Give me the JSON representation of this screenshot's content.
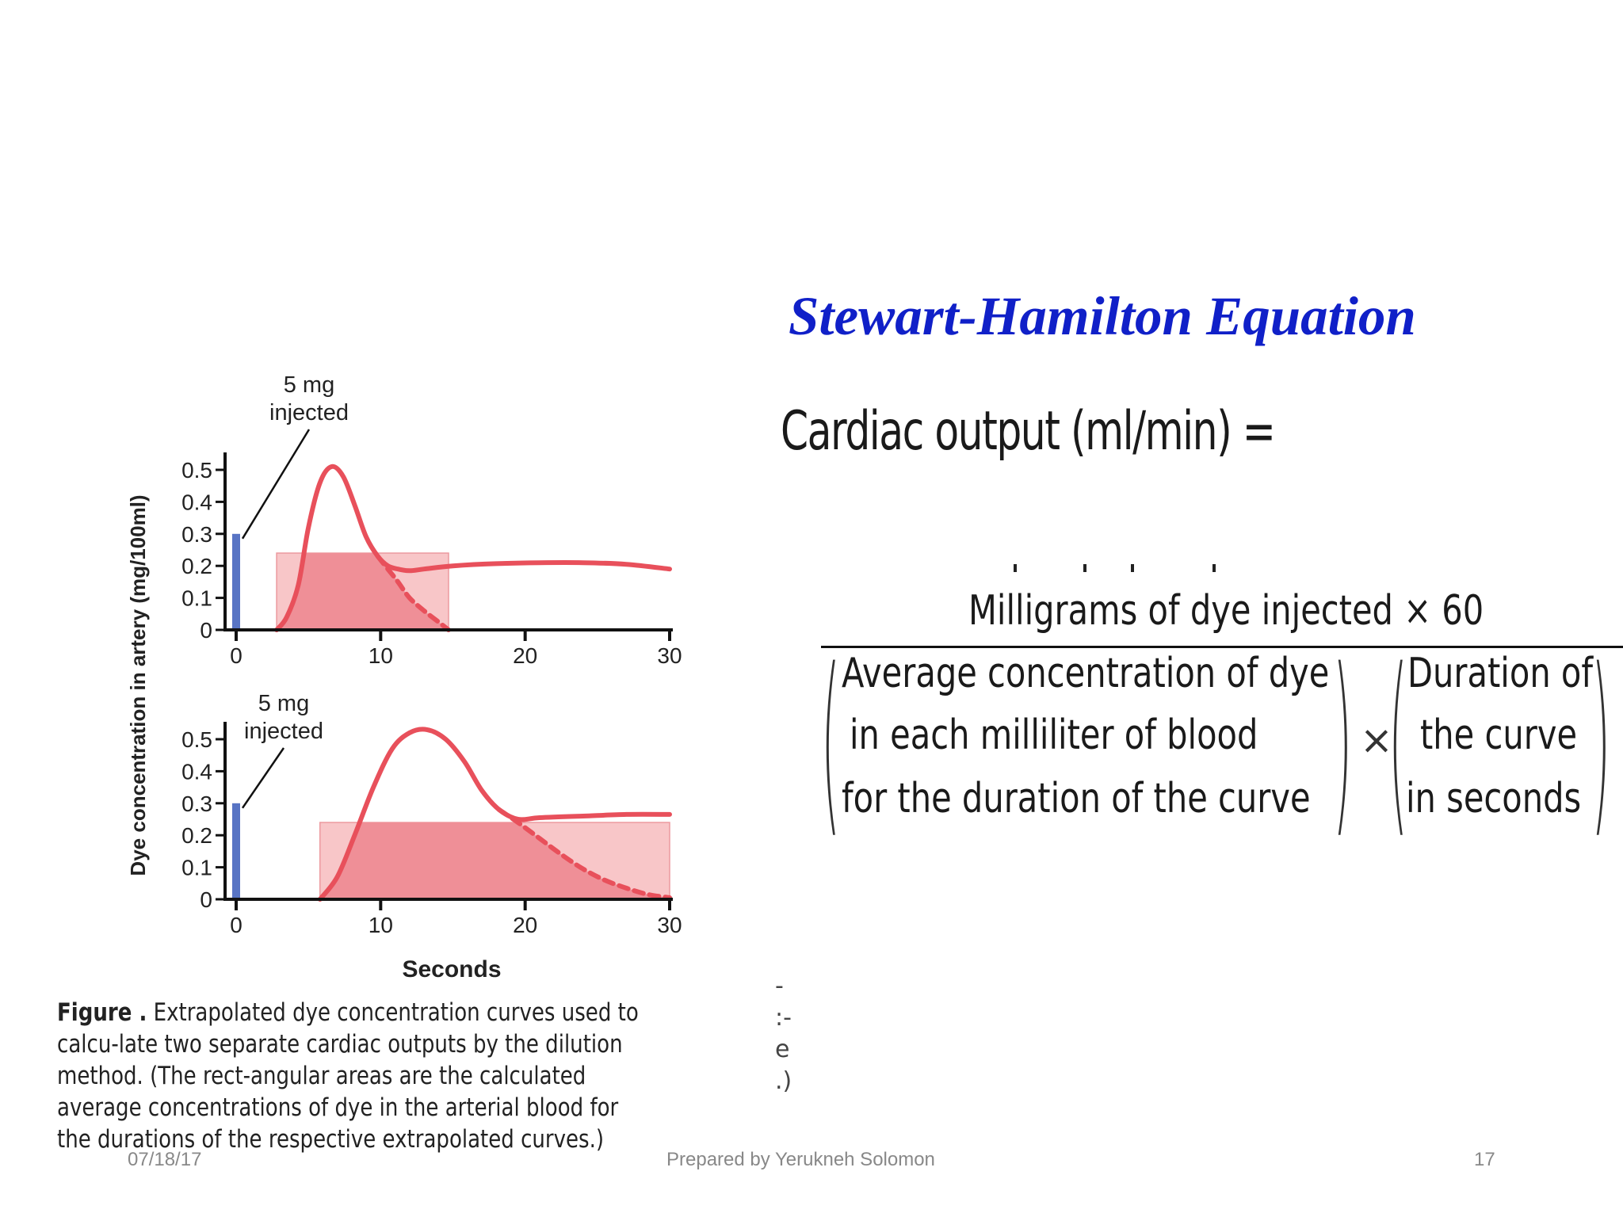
{
  "slide": {
    "title": "Stewart-Hamilton Equation",
    "footer_date": "07/18/17",
    "footer_author": "Prepared by Yerukneh Solomon",
    "footer_page": "17"
  },
  "equation": {
    "lhs": "Cardiac output (ml/min) =",
    "numerator": "Milligrams of dye injected × 60",
    "denominator_left": [
      "Average concentration of dye",
      "in each milliliter of blood",
      "for the duration of the curve"
    ],
    "operator": "×",
    "denominator_right": [
      "Duration of",
      "the curve",
      "in seconds"
    ]
  },
  "caption": {
    "lead": "Figure .",
    "text": " Extrapolated dye concentration curves used to calcu-late two separate cardiac outputs by the dilution method. (The rect-angular areas are the calculated average concentrations of dye in the arterial blood for the durations of the respective extrapolated curves.)",
    "edge_fragment": [
      "-",
      ":-",
      "e",
      ".)"
    ]
  },
  "chart_data": [
    {
      "type": "line",
      "ylabel": "Dye concentration in artery (mg/100ml)",
      "xlabel": "",
      "xlim": [
        0,
        30
      ],
      "ylim": [
        0,
        0.5
      ],
      "xticks": [
        "0",
        "10",
        "20",
        "30"
      ],
      "yticks": [
        "0",
        "0.1",
        "0.2",
        "0.3",
        "0.4",
        "0.5"
      ],
      "injection": {
        "label_line1": "5 mg",
        "label_line2": "injected",
        "x": 0,
        "value": 0.3,
        "color": "#5874c4"
      },
      "rect": {
        "x0": 2.8,
        "x1": 14.7,
        "value": 0.24
      },
      "curve_color": "#e8505b",
      "series": [
        {
          "x": [
            2.8,
            3.5,
            4.3,
            5.0,
            5.8,
            6.6,
            7.4,
            8.2,
            9.0,
            9.8,
            10.5,
            11.2,
            12.0,
            13.0,
            15,
            18,
            21,
            24,
            27,
            30
          ],
          "y": [
            0.0,
            0.04,
            0.14,
            0.32,
            0.46,
            0.51,
            0.48,
            0.39,
            0.29,
            0.23,
            0.2,
            0.19,
            0.185,
            0.19,
            0.2,
            0.207,
            0.21,
            0.21,
            0.205,
            0.19
          ]
        },
        {
          "dashed": true,
          "x": [
            9.8,
            10.5,
            11.2,
            12.0,
            13.0,
            14.0,
            14.7
          ],
          "y": [
            0.23,
            0.19,
            0.15,
            0.1,
            0.06,
            0.025,
            0.0
          ]
        }
      ]
    },
    {
      "type": "line",
      "ylabel": "Dye concentration in artery (mg/100ml)",
      "xlabel": "Seconds",
      "xlim": [
        0,
        30
      ],
      "ylim": [
        0,
        0.5
      ],
      "xticks": [
        "0",
        "10",
        "20",
        "30"
      ],
      "yticks": [
        "0",
        "0.1",
        "0.2",
        "0.3",
        "0.4",
        "0.5"
      ],
      "injection": {
        "label_line1": "5 mg",
        "label_line2": "injected",
        "x": 0,
        "value": 0.3,
        "color": "#5874c4"
      },
      "rect": {
        "x0": 5.8,
        "x1": 30,
        "value": 0.24
      },
      "curve_color": "#e8505b",
      "series": [
        {
          "x": [
            5.8,
            7.0,
            8.2,
            9.5,
            10.8,
            12.0,
            13.2,
            14.5,
            15.8,
            17.0,
            18.2,
            19.5,
            21,
            24,
            27,
            30
          ],
          "y": [
            0.0,
            0.07,
            0.2,
            0.35,
            0.47,
            0.52,
            0.53,
            0.5,
            0.43,
            0.34,
            0.28,
            0.25,
            0.255,
            0.26,
            0.265,
            0.265
          ]
        },
        {
          "dashed": true,
          "x": [
            18.2,
            19.5,
            21,
            22.5,
            24,
            25.5,
            27,
            28.5,
            30
          ],
          "y": [
            0.28,
            0.24,
            0.19,
            0.14,
            0.095,
            0.06,
            0.035,
            0.015,
            0.005
          ]
        }
      ]
    }
  ]
}
